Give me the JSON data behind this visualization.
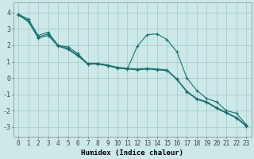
{
  "xlabel": "Humidex (Indice chaleur)",
  "background_color": "#cce8e8",
  "grid_color": "#aacccc",
  "line_color": "#1a7070",
  "xlim": [
    -0.5,
    23.5
  ],
  "ylim": [
    -3.6,
    4.6
  ],
  "xticks": [
    0,
    1,
    2,
    3,
    4,
    5,
    6,
    7,
    8,
    9,
    10,
    11,
    12,
    13,
    14,
    15,
    16,
    17,
    18,
    19,
    20,
    21,
    22,
    23
  ],
  "yticks": [
    -3,
    -2,
    -1,
    0,
    1,
    2,
    3,
    4
  ],
  "series1_x": [
    0,
    1,
    2,
    3,
    4,
    5,
    6,
    7,
    8,
    9,
    10,
    11,
    12,
    13,
    14,
    15,
    16,
    17,
    18,
    19,
    20,
    21,
    22,
    23
  ],
  "series1_y": [
    3.9,
    3.6,
    2.6,
    2.8,
    2.0,
    1.9,
    1.5,
    0.85,
    0.9,
    0.75,
    0.65,
    0.55,
    1.95,
    2.65,
    2.7,
    2.35,
    1.6,
    0.0,
    -0.75,
    -1.25,
    -1.45,
    -2.0,
    -2.15,
    -2.85
  ],
  "series2_x": [
    0,
    1,
    2,
    3,
    4,
    5,
    6,
    7,
    8,
    9,
    10,
    11,
    12,
    13,
    14,
    15,
    16,
    17,
    18,
    19,
    20,
    21,
    22,
    23
  ],
  "series2_y": [
    3.85,
    3.45,
    2.45,
    2.6,
    1.95,
    1.75,
    1.35,
    0.85,
    0.85,
    0.75,
    0.6,
    0.55,
    0.5,
    0.55,
    0.5,
    0.45,
    -0.1,
    -0.85,
    -1.3,
    -1.5,
    -1.85,
    -2.15,
    -2.45,
    -2.95
  ],
  "series3_x": [
    0,
    1,
    2,
    3,
    4,
    5,
    6,
    7,
    8,
    9,
    10,
    11,
    12,
    13,
    14,
    15,
    16,
    17,
    18,
    19,
    20,
    21,
    22,
    23
  ],
  "series3_y": [
    3.9,
    3.5,
    2.5,
    2.7,
    2.0,
    1.8,
    1.4,
    0.9,
    0.9,
    0.8,
    0.65,
    0.6,
    0.55,
    0.6,
    0.55,
    0.5,
    -0.05,
    -0.8,
    -1.25,
    -1.45,
    -1.8,
    -2.1,
    -2.4,
    -2.9
  ],
  "tick_fontsize": 5.5,
  "xlabel_fontsize": 6.5
}
